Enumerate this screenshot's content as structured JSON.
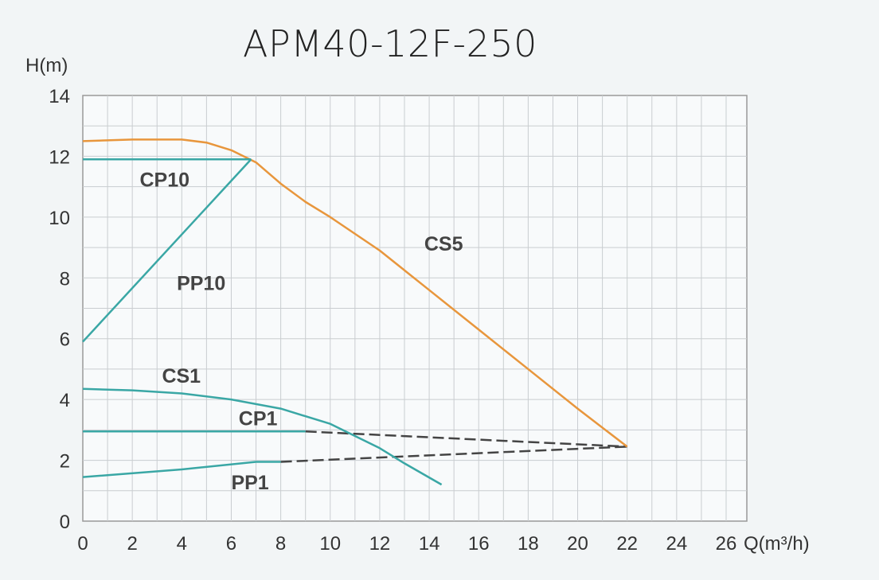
{
  "chart_data": {
    "type": "line",
    "title": "APM40-12F-250",
    "xlabel": "Q(m³/h)",
    "ylabel": "H(m)",
    "xlim": [
      0,
      26.8
    ],
    "ylim": [
      0,
      14
    ],
    "xticks": [
      0,
      2,
      4,
      6,
      8,
      10,
      12,
      14,
      16,
      18,
      20,
      22,
      24,
      26
    ],
    "yticks": [
      0,
      2,
      4,
      6,
      8,
      10,
      12,
      14
    ],
    "grid": true,
    "colors": {
      "orange": "#e8963c",
      "teal": "#3aa7a5",
      "dashed": "#444444"
    },
    "series": [
      {
        "name": "CS5",
        "color": "#e8963c",
        "x": [
          0,
          2,
          4,
          5,
          6,
          7,
          8,
          9,
          10,
          12,
          14,
          16,
          18,
          20,
          22
        ],
        "y": [
          12.5,
          12.55,
          12.55,
          12.45,
          12.2,
          11.8,
          11.1,
          10.5,
          10.0,
          8.9,
          7.6,
          6.3,
          5.0,
          3.7,
          2.45
        ],
        "label_at": [
          13.8,
          8.9
        ]
      },
      {
        "name": "CP10",
        "color": "#3aa7a5",
        "x": [
          0,
          6.8
        ],
        "y": [
          11.9,
          11.9
        ],
        "label_at": [
          2.3,
          11.0
        ]
      },
      {
        "name": "PP10",
        "color": "#3aa7a5",
        "x": [
          0,
          6.8
        ],
        "y": [
          5.9,
          11.9
        ],
        "label_at": [
          3.8,
          7.6
        ]
      },
      {
        "name": "CS1",
        "color": "#3aa7a5",
        "x": [
          0,
          2,
          4,
          6,
          8,
          10,
          12,
          13,
          14.5
        ],
        "y": [
          4.35,
          4.3,
          4.2,
          4.0,
          3.7,
          3.2,
          2.4,
          1.9,
          1.2
        ],
        "label_at": [
          3.2,
          4.55
        ]
      },
      {
        "name": "CP1",
        "color": "#3aa7a5",
        "x": [
          0,
          9
        ],
        "y": [
          2.95,
          2.95
        ],
        "dashed_x": [
          9,
          22
        ],
        "dashed_y": [
          2.95,
          2.45
        ],
        "label_at": [
          6.3,
          3.15
        ]
      },
      {
        "name": "PP1",
        "color": "#3aa7a5",
        "x": [
          0,
          4,
          7,
          8
        ],
        "y": [
          1.45,
          1.7,
          1.95,
          1.95
        ],
        "dashed_x": [
          8,
          22
        ],
        "dashed_y": [
          1.95,
          2.45
        ],
        "label_at": [
          6,
          1.05
        ]
      }
    ]
  }
}
